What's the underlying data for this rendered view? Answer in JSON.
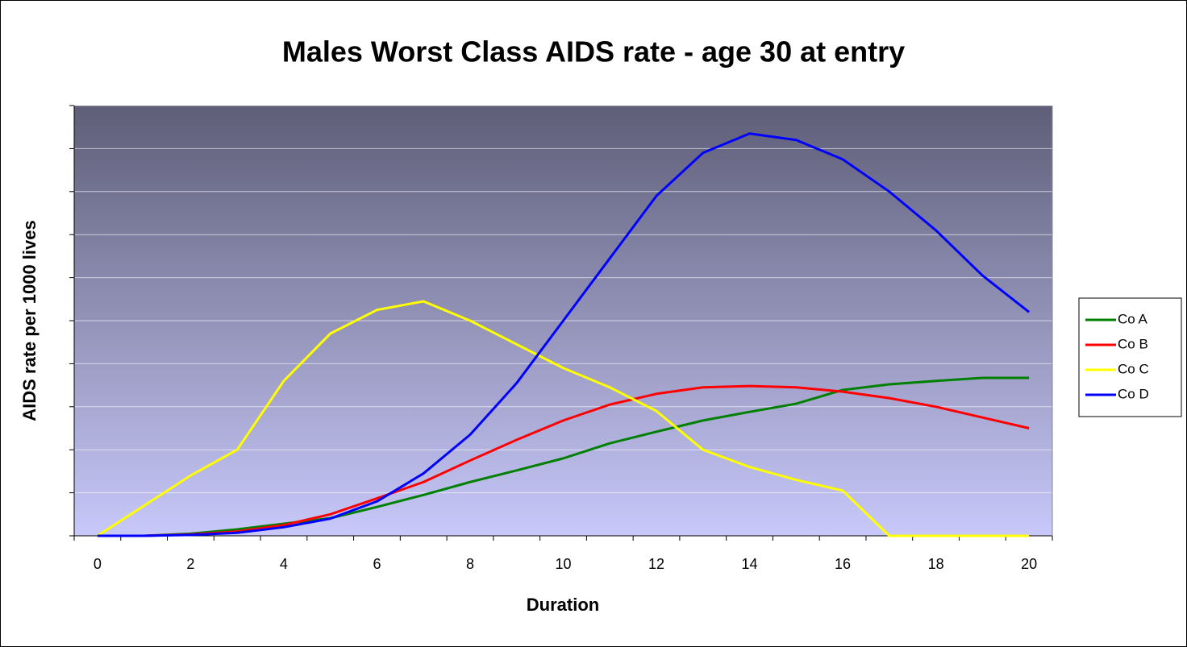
{
  "chart_data": {
    "type": "line",
    "title": "Males Worst Class AIDS rate - age 30 at entry",
    "xlabel": "Duration",
    "ylabel": "AIDS rate per 1000 lives",
    "categories": [
      "0",
      null,
      "2",
      null,
      "4",
      null,
      "6",
      null,
      "8",
      null,
      "10",
      null,
      "12",
      null,
      "14",
      null,
      "16",
      null,
      "18",
      null,
      "20"
    ],
    "series": [
      {
        "name": "Co A",
        "color": "#008000",
        "values": [
          0,
          0,
          0.05,
          0.15,
          0.28,
          0.41,
          0.67,
          0.95,
          1.25,
          1.52,
          1.8,
          2.15,
          2.42,
          2.68,
          2.88,
          3.07,
          3.39,
          3.52,
          3.6,
          3.67,
          3.67
        ]
      },
      {
        "name": "Co B",
        "color": "#ff0000",
        "values": [
          0,
          0,
          0.03,
          0.1,
          0.25,
          0.5,
          0.87,
          1.25,
          1.75,
          2.23,
          2.68,
          3.05,
          3.3,
          3.45,
          3.48,
          3.45,
          3.35,
          3.2,
          3.0,
          2.75,
          2.5
        ]
      },
      {
        "name": "Co C",
        "color": "#ffff00",
        "values": [
          0,
          0.7,
          1.4,
          2.0,
          3.6,
          4.7,
          5.25,
          5.45,
          5.0,
          4.45,
          3.9,
          3.45,
          2.9,
          2.0,
          1.6,
          1.3,
          1.05,
          0,
          0,
          0,
          0
        ]
      },
      {
        "name": "Co D",
        "color": "#0000ff",
        "values": [
          0,
          0,
          0.02,
          0.07,
          0.2,
          0.4,
          0.8,
          1.45,
          2.35,
          3.55,
          5.0,
          6.45,
          7.9,
          8.9,
          9.35,
          9.2,
          8.75,
          8.0,
          7.1,
          6.05,
          5.2
        ]
      }
    ],
    "ylim": [
      0,
      10
    ],
    "yticks": [
      0,
      1,
      2,
      3,
      4,
      5,
      6,
      7,
      8,
      9,
      10
    ],
    "show_ytick_labels": false,
    "grid": true,
    "legend": "right"
  }
}
